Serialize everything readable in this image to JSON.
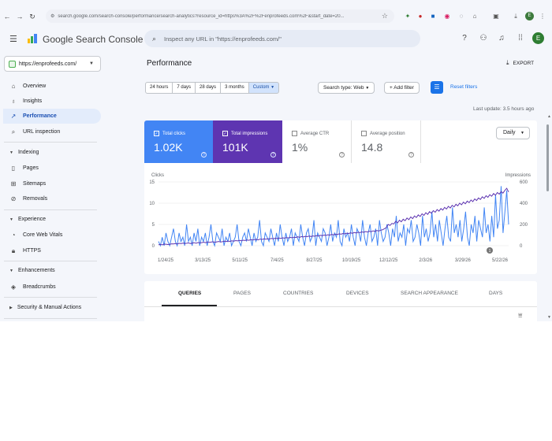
{
  "browser": {
    "url": "search.google.com/search-console/performance/search-analytics?resource_id=https%3A%2F%2Fenprofeeds.com%2F&start_date=20...",
    "profile_initial": "E"
  },
  "app": {
    "brand": "Google Search Console",
    "search_placeholder": "Inspect any URL in \"https://enprofeeds.com/\"",
    "avatar_initial": "E"
  },
  "property": {
    "label": "https://enprofeeds.com/"
  },
  "sidebar": {
    "items": [
      {
        "label": "Overview"
      },
      {
        "label": "Insights"
      },
      {
        "label": "Performance"
      },
      {
        "label": "URL inspection"
      },
      {
        "label": "Pages"
      },
      {
        "label": "Sitemaps"
      },
      {
        "label": "Removals"
      },
      {
        "label": "Core Web Vitals"
      },
      {
        "label": "HTTPS"
      },
      {
        "label": "Breadcrumbs"
      }
    ],
    "sections": [
      {
        "label": "Indexing"
      },
      {
        "label": "Experience"
      },
      {
        "label": "Enhancements"
      },
      {
        "label": "Security & Manual Actions"
      }
    ]
  },
  "main": {
    "title": "Performance",
    "export_label": "EXPORT",
    "ranges": [
      "24 hours",
      "7 days",
      "28 days",
      "3 months",
      "Custom"
    ],
    "search_type": "Search type: Web",
    "add_filter": "Add filter",
    "reset_filters": "Reset filters",
    "last_update": "Last update: 3.5 hours ago",
    "granularity": "Daily"
  },
  "metrics": [
    {
      "label": "Total clicks",
      "value": "1.02K",
      "checked": true,
      "color": "#4285f4"
    },
    {
      "label": "Total impressions",
      "value": "101K",
      "checked": true,
      "color": "#5e35b1"
    },
    {
      "label": "Average CTR",
      "value": "1%",
      "checked": false
    },
    {
      "label": "Average position",
      "value": "14.8",
      "checked": false
    }
  ],
  "chart_data": {
    "type": "line",
    "x_ticks": [
      "1/24/25",
      "3/13/25",
      "5/11/25",
      "7/4/25",
      "8/27/25",
      "10/19/25",
      "12/12/25",
      "2/3/26",
      "3/29/26",
      "5/22/26"
    ],
    "left_axis": {
      "label": "Clicks",
      "ticks": [
        "15",
        "10",
        "5",
        "0"
      ],
      "ylim": [
        0,
        15
      ]
    },
    "right_axis": {
      "label": "Impressions",
      "ticks": [
        "600",
        "400",
        "200",
        "0"
      ],
      "ylim": [
        0,
        600
      ]
    },
    "series": [
      {
        "name": "Clicks",
        "axis": "left",
        "color": "#4285f4",
        "values": [
          1,
          0,
          2,
          0,
          3,
          1,
          0,
          2,
          4,
          1,
          0,
          3,
          1,
          2,
          0,
          5,
          1,
          2,
          0,
          3,
          1,
          4,
          0,
          2,
          1,
          3,
          0,
          2,
          5,
          1,
          0,
          3,
          2,
          1,
          4,
          0,
          2,
          1,
          3,
          0,
          1,
          2,
          5,
          1,
          0,
          2,
          3,
          1,
          4,
          2,
          0,
          3,
          1,
          2,
          6,
          1,
          0,
          3,
          2,
          1,
          4,
          2,
          0,
          3,
          1,
          5,
          2,
          0,
          3,
          1,
          2,
          4,
          0,
          3,
          2,
          1,
          5,
          2,
          0,
          3,
          4,
          1,
          2,
          6,
          0,
          3,
          2,
          1,
          4,
          3,
          0,
          2,
          5,
          1,
          3,
          2,
          6,
          1,
          0,
          4,
          2,
          3,
          1,
          5,
          2,
          0,
          4,
          3,
          1,
          6,
          2,
          0,
          3,
          5,
          1,
          2,
          4,
          0,
          6,
          3,
          1,
          2,
          5,
          3,
          0,
          4,
          2,
          7,
          1,
          3,
          2,
          5,
          0,
          4,
          3,
          6,
          1,
          2,
          5,
          3,
          0,
          7,
          2,
          4,
          1,
          3,
          8,
          2,
          5,
          1,
          6,
          3,
          0,
          4,
          7,
          2,
          1,
          9,
          3,
          5,
          2,
          6,
          1,
          4,
          8,
          2,
          0,
          5,
          3,
          7,
          1,
          6,
          4,
          2,
          9,
          3,
          5,
          1,
          7,
          2,
          12,
          4,
          6,
          14,
          3,
          8,
          13,
          5
        ]
      },
      {
        "name": "Impressions",
        "axis": "right",
        "color": "#5e35b1",
        "values": [
          10,
          12,
          8,
          15,
          14,
          11,
          13,
          18,
          16,
          20,
          17,
          22,
          19,
          24,
          21,
          23,
          26,
          20,
          25,
          28,
          24,
          30,
          27,
          29,
          33,
          28,
          35,
          31,
          34,
          37,
          32,
          36,
          40,
          35,
          38,
          42,
          39,
          44,
          41,
          46,
          43,
          48,
          45,
          50,
          47,
          52,
          49,
          54,
          51,
          56,
          53,
          58,
          60,
          55,
          62,
          59,
          64,
          61,
          66,
          63,
          68,
          65,
          70,
          67,
          72,
          69,
          74,
          71,
          76,
          73,
          78,
          75,
          80,
          77,
          84,
          79,
          86,
          82,
          88,
          85,
          90,
          87,
          92,
          89,
          95,
          91,
          98,
          94,
          100,
          97,
          103,
          99,
          106,
          102,
          109,
          105,
          112,
          108,
          115,
          111,
          118,
          114,
          121,
          117,
          124,
          120,
          127,
          123,
          130,
          126,
          133,
          129,
          136,
          132,
          140,
          135,
          143,
          138,
          146,
          150,
          160,
          170,
          200,
          190,
          210,
          205,
          230,
          215,
          240,
          225,
          250,
          235,
          260,
          245,
          270,
          255,
          280,
          265,
          290,
          275,
          300,
          285,
          310,
          295,
          320,
          305,
          330,
          315,
          340,
          325,
          350,
          335,
          360,
          345,
          370,
          355,
          380,
          365,
          390,
          375,
          400,
          385,
          410,
          395,
          420,
          405,
          430,
          415,
          440,
          425,
          450,
          435,
          460,
          445,
          470,
          455,
          480,
          465,
          490,
          475,
          500,
          485,
          510,
          495,
          520,
          540,
          505
        ]
      }
    ],
    "annotation": "1",
    "grid": true
  },
  "tabs": [
    "QUERIES",
    "PAGES",
    "COUNTRIES",
    "DEVICES",
    "SEARCH APPEARANCE",
    "DAYS"
  ]
}
